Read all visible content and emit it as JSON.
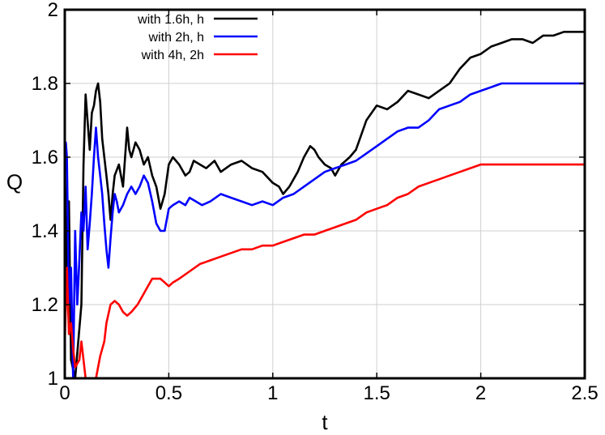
{
  "chart_data": {
    "type": "line",
    "title": "",
    "xlabel": "t",
    "ylabel": "Q",
    "xlim": [
      0,
      2.5
    ],
    "ylim": [
      1,
      2
    ],
    "xticks": [
      0,
      0.5,
      1,
      1.5,
      2,
      2.5
    ],
    "xtick_labels": [
      "0",
      "0.5",
      "1",
      "1.5",
      "2",
      "2.5"
    ],
    "yticks": [
      1,
      1.2,
      1.4,
      1.6,
      1.8,
      2
    ],
    "ytick_labels": [
      "1",
      "1.2",
      "1.4",
      "1.6",
      "1.8",
      "2"
    ],
    "grid": true,
    "legend_position": "top-left",
    "series": [
      {
        "name": "with 1.6h, h",
        "color": "#000000",
        "x": [
          0,
          0.01,
          0.02,
          0.03,
          0.05,
          0.08,
          0.09,
          0.1,
          0.12,
          0.13,
          0.14,
          0.15,
          0.16,
          0.17,
          0.18,
          0.19,
          0.2,
          0.21,
          0.22,
          0.23,
          0.24,
          0.26,
          0.28,
          0.3,
          0.31,
          0.32,
          0.34,
          0.36,
          0.38,
          0.4,
          0.42,
          0.44,
          0.46,
          0.48,
          0.5,
          0.52,
          0.55,
          0.58,
          0.6,
          0.62,
          0.65,
          0.68,
          0.72,
          0.75,
          0.8,
          0.85,
          0.9,
          0.95,
          1.0,
          1.03,
          1.05,
          1.08,
          1.12,
          1.15,
          1.18,
          1.2,
          1.22,
          1.25,
          1.28,
          1.3,
          1.33,
          1.37,
          1.4,
          1.45,
          1.5,
          1.55,
          1.6,
          1.65,
          1.7,
          1.75,
          1.8,
          1.85,
          1.9,
          1.95,
          2.0,
          2.05,
          2.1,
          2.15,
          2.2,
          2.25,
          2.3,
          2.35,
          2.4,
          2.45,
          2.5
        ],
        "y": [
          1.6,
          1.25,
          1.48,
          1.05,
          1.0,
          1.2,
          1.58,
          1.77,
          1.62,
          1.72,
          1.74,
          1.78,
          1.8,
          1.75,
          1.65,
          1.6,
          1.55,
          1.5,
          1.43,
          1.5,
          1.55,
          1.58,
          1.52,
          1.68,
          1.62,
          1.6,
          1.64,
          1.62,
          1.58,
          1.6,
          1.55,
          1.52,
          1.46,
          1.5,
          1.58,
          1.6,
          1.58,
          1.55,
          1.56,
          1.59,
          1.58,
          1.57,
          1.59,
          1.56,
          1.58,
          1.59,
          1.57,
          1.56,
          1.53,
          1.52,
          1.5,
          1.52,
          1.56,
          1.6,
          1.63,
          1.62,
          1.6,
          1.58,
          1.57,
          1.55,
          1.58,
          1.6,
          1.62,
          1.7,
          1.74,
          1.73,
          1.75,
          1.78,
          1.77,
          1.76,
          1.78,
          1.8,
          1.84,
          1.87,
          1.88,
          1.9,
          1.91,
          1.92,
          1.92,
          1.91,
          1.93,
          1.93,
          1.94,
          1.94,
          1.94
        ]
      },
      {
        "name": "with 2h, h",
        "color": "#0000ff",
        "x": [
          0,
          0.005,
          0.01,
          0.02,
          0.03,
          0.04,
          0.05,
          0.06,
          0.07,
          0.08,
          0.09,
          0.1,
          0.11,
          0.12,
          0.13,
          0.14,
          0.15,
          0.16,
          0.17,
          0.18,
          0.19,
          0.2,
          0.21,
          0.22,
          0.23,
          0.24,
          0.25,
          0.26,
          0.28,
          0.3,
          0.32,
          0.34,
          0.36,
          0.38,
          0.4,
          0.42,
          0.44,
          0.46,
          0.48,
          0.5,
          0.52,
          0.55,
          0.58,
          0.6,
          0.63,
          0.66,
          0.7,
          0.75,
          0.8,
          0.85,
          0.9,
          0.95,
          1.0,
          1.05,
          1.1,
          1.15,
          1.2,
          1.25,
          1.3,
          1.35,
          1.4,
          1.45,
          1.5,
          1.55,
          1.6,
          1.65,
          1.7,
          1.75,
          1.8,
          1.85,
          1.9,
          1.95,
          2.0,
          2.05,
          2.1,
          2.15,
          2.2,
          2.25,
          2.3,
          2.35,
          2.4,
          2.45,
          2.5
        ],
        "y": [
          1.58,
          1.64,
          1.6,
          1.2,
          1.3,
          1.0,
          1.4,
          1.2,
          1.32,
          1.45,
          1.4,
          1.52,
          1.35,
          1.42,
          1.5,
          1.6,
          1.68,
          1.6,
          1.55,
          1.5,
          1.42,
          1.35,
          1.3,
          1.38,
          1.45,
          1.5,
          1.48,
          1.45,
          1.47,
          1.5,
          1.52,
          1.5,
          1.52,
          1.55,
          1.53,
          1.48,
          1.42,
          1.4,
          1.4,
          1.46,
          1.47,
          1.48,
          1.47,
          1.49,
          1.48,
          1.47,
          1.48,
          1.5,
          1.49,
          1.48,
          1.47,
          1.48,
          1.47,
          1.49,
          1.5,
          1.52,
          1.54,
          1.56,
          1.57,
          1.58,
          1.59,
          1.61,
          1.63,
          1.65,
          1.67,
          1.68,
          1.68,
          1.7,
          1.73,
          1.74,
          1.75,
          1.77,
          1.78,
          1.79,
          1.8,
          1.8,
          1.8,
          1.8,
          1.8,
          1.8,
          1.8,
          1.8,
          1.8
        ]
      },
      {
        "name": "with 4h, 2h",
        "color": "#ff0000",
        "x": [
          0,
          0.01,
          0.02,
          0.03,
          0.04,
          0.05,
          0.07,
          0.08,
          0.1,
          0.12,
          0.15,
          0.17,
          0.19,
          0.2,
          0.22,
          0.24,
          0.26,
          0.28,
          0.3,
          0.32,
          0.35,
          0.38,
          0.4,
          0.42,
          0.44,
          0.46,
          0.48,
          0.5,
          0.52,
          0.55,
          0.6,
          0.65,
          0.7,
          0.75,
          0.8,
          0.85,
          0.9,
          0.95,
          1.0,
          1.05,
          1.1,
          1.15,
          1.2,
          1.25,
          1.3,
          1.35,
          1.4,
          1.45,
          1.5,
          1.55,
          1.6,
          1.65,
          1.7,
          1.75,
          1.8,
          1.85,
          1.9,
          1.95,
          2.0,
          2.05,
          2.1,
          2.15,
          2.2,
          2.25,
          2.3,
          2.35,
          2.4,
          2.45,
          2.5
        ],
        "y": [
          1.1,
          1.3,
          1.12,
          1.15,
          1.08,
          1.03,
          1.05,
          1.1,
          1.0,
          1.0,
          1.0,
          1.06,
          1.1,
          1.15,
          1.2,
          1.21,
          1.2,
          1.18,
          1.17,
          1.18,
          1.2,
          1.23,
          1.25,
          1.27,
          1.27,
          1.27,
          1.26,
          1.25,
          1.26,
          1.27,
          1.29,
          1.31,
          1.32,
          1.33,
          1.34,
          1.35,
          1.35,
          1.36,
          1.36,
          1.37,
          1.38,
          1.39,
          1.39,
          1.4,
          1.41,
          1.42,
          1.43,
          1.45,
          1.46,
          1.47,
          1.49,
          1.5,
          1.52,
          1.53,
          1.54,
          1.55,
          1.56,
          1.57,
          1.58,
          1.58,
          1.58,
          1.58,
          1.58,
          1.58,
          1.58,
          1.58,
          1.58,
          1.58,
          1.58
        ]
      }
    ]
  }
}
